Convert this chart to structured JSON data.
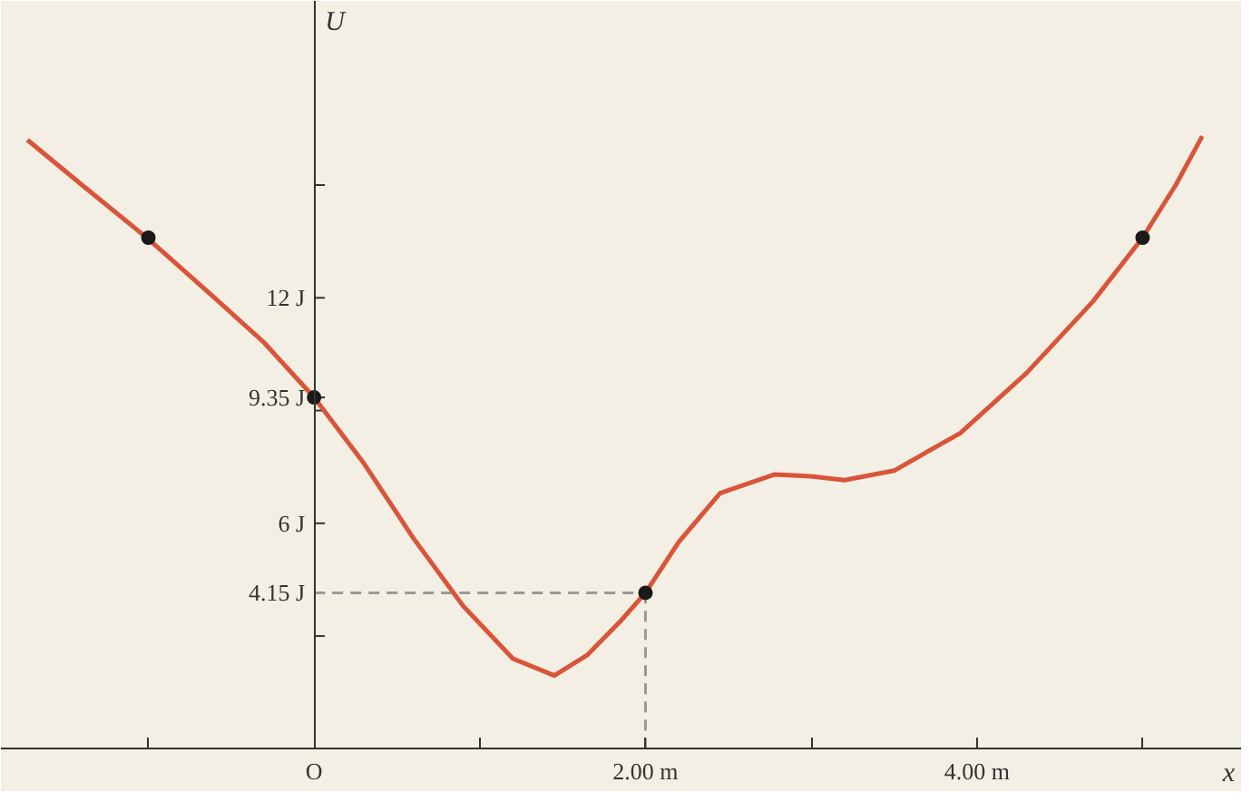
{
  "chart_data": {
    "type": "line",
    "xlabel": "x",
    "ylabel": "U",
    "series": [
      {
        "color": "#d9553a",
        "marker": "none",
        "x": [
          -1.73,
          -1.4,
          -1.01,
          -0.6,
          -0.3,
          0,
          0.3,
          0.6,
          0.9,
          1.2,
          1.45,
          1.65,
          1.85,
          2,
          2.2,
          2.45,
          2.78,
          3.0,
          3.2,
          3.5,
          3.9,
          4.3,
          4.7,
          5.0,
          5.2,
          5.36
        ],
        "values": [
          16.2,
          15.0,
          13.6,
          12.0,
          10.8,
          9.35,
          7.6,
          5.6,
          3.8,
          2.4,
          1.95,
          2.5,
          3.4,
          4.15,
          5.5,
          6.8,
          7.3,
          7.25,
          7.15,
          7.4,
          8.4,
          10.0,
          11.9,
          13.6,
          15.0,
          16.3
        ]
      },
      {
        "type": "scatter",
        "color": "#1a1a1a",
        "marker": "circle",
        "x": [
          -1,
          0,
          2,
          5
        ],
        "values": [
          13.6,
          9.35,
          4.15,
          13.6
        ]
      }
    ],
    "xlim": [
      -1.89,
      5.6
    ],
    "ylim": [
      -1.15,
      19.9
    ],
    "xticks": [
      {
        "value": -1,
        "label": null
      },
      {
        "value": 0,
        "label": "O"
      },
      {
        "value": 1,
        "label": null
      },
      {
        "value": 2,
        "label": "2.00 m"
      },
      {
        "value": 3,
        "label": null
      },
      {
        "value": 4,
        "label": "4.00 m"
      },
      {
        "value": 5,
        "label": null
      }
    ],
    "yticks": [
      {
        "value": 3,
        "label": null
      },
      {
        "value": 4.15,
        "label": "4.15 J"
      },
      {
        "value": 6,
        "label": "6 J"
      },
      {
        "value": 9,
        "label": null
      },
      {
        "value": 9.35,
        "label": "9.35 J"
      },
      {
        "value": 12,
        "label": "12 J"
      },
      {
        "value": 15,
        "label": null
      }
    ],
    "ref_lines": [
      {
        "axis": "y",
        "value": 4.15,
        "color": "#999999",
        "line_style": "dashed"
      },
      {
        "axis": "x",
        "value": 2,
        "color": "#999999",
        "line_style": "dashed"
      }
    ],
    "grid": false
  }
}
